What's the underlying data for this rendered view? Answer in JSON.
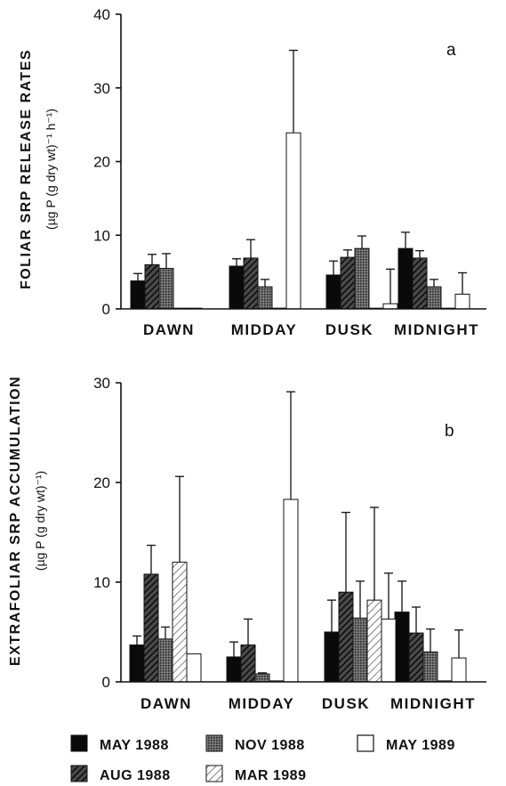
{
  "chart_data": [
    {
      "type": "bar",
      "panel_label": "a",
      "ylabel": "FOLIAR SRP RELEASE RATES",
      "ylabel_units": "(µg P (g dry wt)⁻¹ h⁻¹)",
      "ylim": [
        0,
        40
      ],
      "yticks": [
        "0",
        "10",
        "20",
        "30",
        "40"
      ],
      "categories": [
        "DAWN",
        "MIDDAY",
        "DUSK",
        "MIDNIGHT"
      ],
      "series": [
        {
          "name": "MAY 1988",
          "values": [
            3.8,
            5.8,
            4.6,
            8.2
          ],
          "errors": [
            1.0,
            1.0,
            1.9,
            2.2
          ]
        },
        {
          "name": "AUG 1988",
          "values": [
            6.0,
            6.9,
            7.0,
            6.9
          ],
          "errors": [
            1.4,
            2.5,
            1.0,
            1.0
          ]
        },
        {
          "name": "NOV 1988",
          "values": [
            5.5,
            3.0,
            8.2,
            3.0
          ],
          "errors": [
            2.0,
            1.0,
            1.7,
            1.0
          ]
        },
        {
          "name": "MAR 1989",
          "values": [
            0.1,
            0.1,
            0.1,
            0.1
          ],
          "errors": [
            0,
            0,
            0,
            0
          ]
        },
        {
          "name": "MAY 1989",
          "values": [
            0.1,
            23.9,
            0.7,
            2.0
          ],
          "errors": [
            0,
            11.2,
            4.7,
            2.9
          ]
        }
      ]
    },
    {
      "type": "bar",
      "panel_label": "b",
      "ylabel": "EXTRAFOLIAR SRP ACCUMULATION",
      "ylabel_units": "(µg P (g dry wt)⁻¹)",
      "ylim": [
        0,
        30
      ],
      "yticks": [
        "0",
        "10",
        "20",
        "30"
      ],
      "categories": [
        "DAWN",
        "MIDDAY",
        "DUSK",
        "MIDNIGHT"
      ],
      "series": [
        {
          "name": "MAY 1988",
          "values": [
            3.7,
            2.5,
            5.0,
            7.0
          ],
          "errors": [
            0.9,
            1.5,
            3.2,
            3.1
          ]
        },
        {
          "name": "AUG 1988",
          "values": [
            10.8,
            3.7,
            9.0,
            4.9
          ],
          "errors": [
            2.9,
            2.6,
            8.0,
            2.6
          ]
        },
        {
          "name": "NOV 1988",
          "values": [
            4.3,
            0.8,
            6.4,
            3.0
          ],
          "errors": [
            1.2,
            0.1,
            3.7,
            2.3
          ]
        },
        {
          "name": "MAR 1989",
          "values": [
            12.0,
            0.1,
            8.2,
            0.1
          ],
          "errors": [
            8.6,
            0,
            9.3,
            0
          ]
        },
        {
          "name": "MAY 1989",
          "values": [
            2.8,
            18.3,
            6.3,
            2.4
          ],
          "errors": [
            0,
            10.8,
            4.6,
            2.8
          ]
        }
      ]
    }
  ],
  "legend": [
    {
      "label": "MAY 1988",
      "pattern": "solid-black"
    },
    {
      "label": "NOV 1988",
      "pattern": "dark-stipple"
    },
    {
      "label": "MAY 1989",
      "pattern": "white"
    },
    {
      "label": "AUG 1988",
      "pattern": "dense-hatch"
    },
    {
      "label": "MAR 1989",
      "pattern": "light-hatch"
    }
  ]
}
